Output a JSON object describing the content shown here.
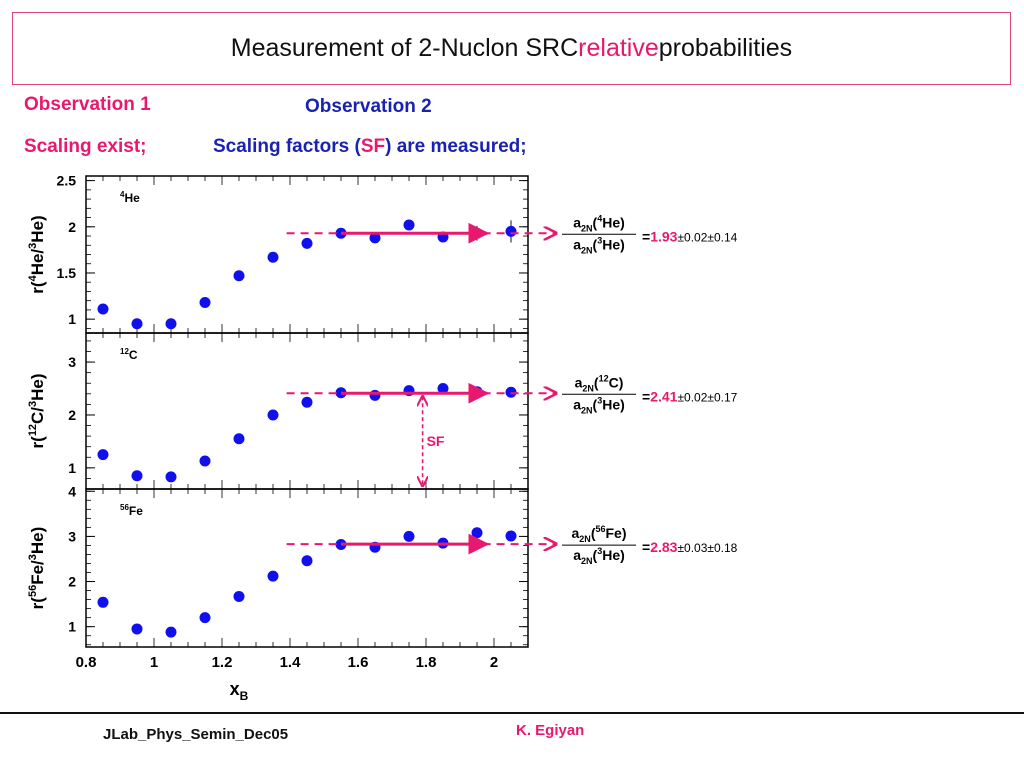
{
  "slide": {
    "title_before": "Measurement of 2-Nuclon SRC ",
    "title_highlight": "relative",
    "title_after": " probabilities",
    "obs1_label": "Observation 1",
    "obs2_label": "Observation 2",
    "obs1_text": "Scaling exist;",
    "obs2_text_a": "Scaling factors (",
    "obs2_text_sf": "SF",
    "obs2_text_b": ") are measured;",
    "footer_left": "JLab_Phys_Semin_Dec05",
    "footer_right": "K. Egiyan"
  },
  "colors": {
    "accent": "#e8186f",
    "blue_text": "#1a22b4",
    "marker": "#1010ee"
  },
  "chart_data": {
    "type": "scatter",
    "x_axis": {
      "label": "x",
      "label_sub": "B",
      "range": [
        0.8,
        2.1
      ],
      "ticks": [
        0.8,
        1,
        1.2,
        1.4,
        1.6,
        1.8,
        2
      ],
      "tick_labels": [
        "0.8",
        "1",
        "1.2",
        "1.4",
        "1.6",
        "1.8",
        "2"
      ]
    },
    "sf_label": "SF",
    "panels": [
      {
        "name": "4He",
        "tag_sup": "4",
        "tag_base": "He",
        "ylabel": {
          "pre": "r(",
          "sup1": "4",
          "mid": "He/",
          "sup2": "3",
          "post": "He)"
        },
        "ylim": [
          0.85,
          2.55
        ],
        "yticks": [
          1,
          1.5,
          2,
          2.5
        ],
        "ytick_labels": [
          "1",
          "1.5",
          "2",
          "2.5"
        ],
        "x": [
          0.85,
          0.95,
          1.05,
          1.15,
          1.25,
          1.35,
          1.45,
          1.55,
          1.65,
          1.75,
          1.85,
          1.95,
          2.05
        ],
        "y": [
          1.11,
          0.95,
          0.95,
          1.18,
          1.47,
          1.67,
          1.82,
          1.93,
          1.88,
          2.02,
          1.89,
          1.93,
          1.95
        ],
        "yerr": [
          0,
          0,
          0,
          0,
          0,
          0,
          0,
          0,
          0,
          0,
          0.05,
          0.08,
          0.12
        ],
        "scaling_value": 1.93,
        "ratio": {
          "num_base": "a",
          "num_sub": "2N",
          "num_sup": "4",
          "num_el": "He",
          "den_base": "a",
          "den_sub": "2N",
          "den_sup": "3",
          "den_el": "He",
          "equals": "=",
          "value": "1.93",
          "errors": "±0.02±0.14"
        }
      },
      {
        "name": "12C",
        "tag_sup": "12",
        "tag_base": "C",
        "ylabel": {
          "pre": "r(",
          "sup1": "12",
          "mid": "C/",
          "sup2": "3",
          "post": "He)"
        },
        "ylim": [
          0.6,
          3.55
        ],
        "yticks": [
          1,
          2,
          3
        ],
        "ytick_labels": [
          "1",
          "2",
          "3"
        ],
        "x": [
          0.85,
          0.95,
          1.05,
          1.15,
          1.25,
          1.35,
          1.45,
          1.55,
          1.65,
          1.75,
          1.85,
          1.95,
          2.05
        ],
        "y": [
          1.25,
          0.85,
          0.83,
          1.13,
          1.55,
          2.0,
          2.24,
          2.42,
          2.37,
          2.46,
          2.5,
          2.44,
          2.43
        ],
        "yerr": [
          0,
          0,
          0,
          0,
          0,
          0,
          0,
          0,
          0,
          0,
          0.04,
          0.06,
          0.08
        ],
        "scaling_value": 2.41,
        "ratio": {
          "num_base": "a",
          "num_sub": "2N",
          "num_sup": "12",
          "num_el": "C",
          "den_base": "a",
          "den_sub": "2N",
          "den_sup": "3",
          "den_el": "He",
          "equals": "=",
          "value": "2.41",
          "errors": "±0.02±0.17"
        }
      },
      {
        "name": "56Fe",
        "tag_sup": "56",
        "tag_base": "Fe",
        "ylabel": {
          "pre": "r(",
          "sup1": "56",
          "mid": "Fe/",
          "sup2": "3",
          "post": "He)"
        },
        "ylim": [
          0.55,
          4.05
        ],
        "yticks": [
          1,
          2,
          3,
          4
        ],
        "ytick_labels": [
          "1",
          "2",
          "3",
          "4"
        ],
        "x": [
          0.85,
          0.95,
          1.05,
          1.15,
          1.25,
          1.35,
          1.45,
          1.55,
          1.65,
          1.75,
          1.85,
          1.95,
          2.05
        ],
        "y": [
          1.54,
          0.95,
          0.88,
          1.2,
          1.67,
          2.12,
          2.46,
          2.82,
          2.76,
          3.0,
          2.85,
          3.08,
          3.01
        ],
        "yerr": [
          0,
          0,
          0,
          0,
          0,
          0,
          0,
          0,
          0,
          0,
          0.05,
          0.08,
          0.12
        ],
        "scaling_value": 2.83,
        "ratio": {
          "num_base": "a",
          "num_sub": "2N",
          "num_sup": "56",
          "num_el": "Fe",
          "den_base": "a",
          "den_sub": "2N",
          "den_sup": "3",
          "den_el": "He",
          "equals": "=",
          "value": "2.83",
          "errors": "±0.03±0.18"
        }
      }
    ]
  }
}
